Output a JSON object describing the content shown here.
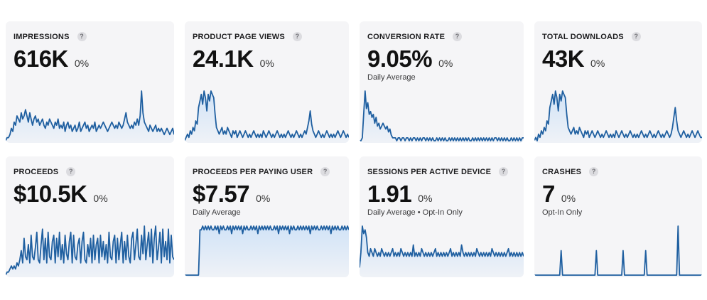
{
  "line_color": "#1f5fa0",
  "fill_color": "#cfe2f7",
  "help_icon": "question-mark-icon",
  "metrics": [
    {
      "title": "IMPRESSIONS",
      "value": "616K",
      "change": "0%",
      "subtitle": "",
      "series": [
        0,
        1,
        1,
        2,
        4,
        3,
        6,
        5,
        8,
        7,
        6,
        9,
        7,
        8,
        10,
        8,
        6,
        9,
        7,
        5,
        7,
        8,
        6,
        7,
        5,
        6,
        7,
        5,
        4,
        6,
        5,
        7,
        6,
        5,
        4,
        6,
        5,
        7,
        4,
        5,
        4,
        6,
        3,
        5,
        6,
        4,
        5,
        3,
        4,
        5,
        3,
        4,
        6,
        3,
        4,
        5,
        6,
        4,
        5,
        3,
        4,
        5,
        4,
        6,
        3,
        4,
        5,
        4,
        5,
        6,
        5,
        4,
        3,
        4,
        5,
        6,
        5,
        4,
        5,
        4,
        6,
        5,
        4,
        5,
        7,
        9,
        6,
        5,
        4,
        5,
        4,
        6,
        5,
        7,
        5,
        8,
        16,
        9,
        6,
        5,
        4,
        3,
        5,
        4,
        3,
        4,
        5,
        3,
        4,
        3,
        4,
        3,
        2,
        3,
        4,
        3,
        2,
        3,
        4,
        2
      ]
    },
    {
      "title": "PRODUCT PAGE VIEWS",
      "value": "24.1K",
      "change": "0%",
      "subtitle": "",
      "series": [
        0,
        1,
        2,
        1,
        3,
        2,
        4,
        3,
        6,
        5,
        10,
        12,
        14,
        11,
        15,
        13,
        9,
        14,
        12,
        15,
        14,
        13,
        8,
        4,
        3,
        2,
        3,
        4,
        2,
        3,
        2,
        4,
        3,
        2,
        1,
        3,
        2,
        3,
        1,
        2,
        3,
        2,
        1,
        2,
        3,
        2,
        1,
        2,
        1,
        2,
        3,
        2,
        1,
        2,
        1,
        2,
        1,
        3,
        2,
        1,
        2,
        3,
        2,
        1,
        2,
        1,
        2,
        3,
        2,
        1,
        2,
        1,
        2,
        1,
        2,
        3,
        2,
        1,
        2,
        1,
        2,
        3,
        2,
        1,
        2,
        1,
        2,
        3,
        2,
        4,
        6,
        9,
        5,
        3,
        2,
        1,
        2,
        3,
        2,
        1,
        2,
        1,
        2,
        3,
        2,
        1,
        2,
        1,
        2,
        1,
        2,
        3,
        2,
        1,
        2,
        3,
        2,
        1,
        2,
        1
      ]
    },
    {
      "title": "CONVERSION RATE",
      "value": "9.05%",
      "change": "0%",
      "subtitle": "Daily Average",
      "series": [
        0,
        0,
        1,
        9,
        17,
        11,
        13,
        9,
        10,
        8,
        9,
        6,
        8,
        5,
        6,
        4,
        5,
        6,
        5,
        4,
        5,
        3,
        4,
        2,
        1,
        1,
        1,
        0,
        1,
        1,
        0,
        1,
        1,
        0,
        1,
        1,
        0,
        1,
        0,
        1,
        1,
        0,
        1,
        0,
        1,
        0,
        1,
        1,
        0,
        1,
        0,
        1,
        0,
        1,
        0,
        0,
        1,
        0,
        1,
        0,
        1,
        0,
        1,
        0,
        0,
        1,
        0,
        1,
        0,
        1,
        0,
        1,
        0,
        1,
        0,
        1,
        0,
        1,
        0,
        1,
        0,
        0,
        1,
        0,
        1,
        0,
        1,
        0,
        1,
        0,
        1,
        0,
        1,
        0,
        1,
        0,
        1,
        0,
        1,
        1,
        0,
        1,
        0,
        1,
        0,
        1,
        0,
        1,
        0,
        0,
        1,
        0,
        1,
        0,
        1,
        0,
        1,
        0,
        1,
        1
      ]
    },
    {
      "title": "TOTAL DOWNLOADS",
      "value": "43K",
      "change": "0%",
      "subtitle": "",
      "series": [
        0,
        1,
        0,
        2,
        1,
        3,
        2,
        4,
        3,
        6,
        5,
        10,
        12,
        14,
        11,
        15,
        13,
        9,
        14,
        12,
        15,
        14,
        13,
        8,
        4,
        3,
        2,
        3,
        4,
        2,
        3,
        2,
        4,
        3,
        2,
        1,
        3,
        2,
        3,
        1,
        2,
        3,
        2,
        1,
        2,
        3,
        2,
        1,
        2,
        1,
        2,
        3,
        2,
        1,
        2,
        1,
        2,
        1,
        3,
        2,
        1,
        2,
        3,
        2,
        1,
        2,
        1,
        2,
        3,
        2,
        1,
        2,
        1,
        2,
        1,
        2,
        3,
        2,
        1,
        2,
        1,
        2,
        3,
        2,
        1,
        2,
        1,
        2,
        3,
        2,
        1,
        2,
        1,
        2,
        3,
        2,
        1,
        2,
        4,
        7,
        10,
        6,
        3,
        2,
        1,
        2,
        3,
        2,
        1,
        2,
        1,
        2,
        3,
        2,
        1,
        2,
        3,
        2,
        1,
        1
      ]
    },
    {
      "title": "PROCEEDS",
      "value": "$10.5K",
      "change": "0%",
      "subtitle": "",
      "series": [
        0,
        1,
        1,
        2,
        3,
        2,
        3,
        2,
        4,
        3,
        5,
        8,
        4,
        12,
        6,
        5,
        10,
        4,
        13,
        6,
        5,
        9,
        14,
        5,
        4,
        10,
        15,
        5,
        12,
        4,
        14,
        6,
        5,
        11,
        13,
        4,
        12,
        6,
        14,
        5,
        10,
        4,
        13,
        7,
        5,
        11,
        14,
        4,
        13,
        6,
        5,
        10,
        12,
        4,
        11,
        14,
        5,
        4,
        10,
        6,
        12,
        4,
        13,
        5,
        10,
        12,
        4,
        13,
        6,
        11,
        5,
        10,
        4,
        14,
        6,
        5,
        11,
        13,
        4,
        12,
        5,
        10,
        14,
        4,
        11,
        5,
        13,
        6,
        4,
        12,
        14,
        5,
        10,
        15,
        6,
        5,
        13,
        7,
        16,
        5,
        10,
        14,
        6,
        15,
        4,
        12,
        16,
        5,
        9,
        14,
        4,
        15,
        6,
        11,
        5,
        15,
        4,
        13,
        6,
        5
      ]
    },
    {
      "title": "PROCEEDS PER PAYING USER",
      "value": "$7.57",
      "change": "0%",
      "subtitle": "Daily Average",
      "series": [
        0,
        0,
        0,
        0,
        0,
        0,
        0,
        0,
        0,
        0,
        0,
        12,
        12,
        13,
        12,
        13,
        12,
        13,
        12,
        13,
        12,
        12,
        13,
        12,
        13,
        11,
        13,
        12,
        13,
        12,
        12,
        13,
        12,
        13,
        11,
        13,
        12,
        13,
        12,
        13,
        12,
        13,
        11,
        13,
        12,
        13,
        12,
        12,
        13,
        12,
        13,
        12,
        13,
        11,
        13,
        12,
        13,
        12,
        13,
        12,
        13,
        12,
        13,
        12,
        12,
        13,
        12,
        13,
        11,
        13,
        12,
        13,
        12,
        13,
        12,
        13,
        11,
        13,
        12,
        13,
        12,
        12,
        13,
        12,
        13,
        12,
        13,
        12,
        13,
        12,
        13,
        11,
        13,
        12,
        13,
        12,
        13,
        12,
        12,
        13,
        12,
        13,
        12,
        13,
        12,
        13,
        11,
        13,
        12,
        13,
        12,
        13,
        12,
        12,
        13,
        12,
        13,
        12,
        13,
        12
      ]
    },
    {
      "title": "SESSIONS PER ACTIVE DEVICE",
      "value": "1.91",
      "change": "0%",
      "subtitle": "Daily Average • Opt-In Only",
      "series": [
        2,
        6,
        13,
        11,
        12,
        10,
        6,
        5,
        7,
        6,
        5,
        7,
        6,
        5,
        6,
        5,
        7,
        6,
        5,
        6,
        5,
        6,
        5,
        6,
        7,
        5,
        6,
        5,
        6,
        5,
        7,
        6,
        5,
        6,
        5,
        6,
        5,
        6,
        5,
        8,
        5,
        6,
        5,
        6,
        5,
        7,
        6,
        5,
        6,
        5,
        6,
        5,
        6,
        5,
        6,
        7,
        5,
        6,
        5,
        6,
        5,
        6,
        5,
        6,
        5,
        6,
        7,
        5,
        6,
        5,
        6,
        5,
        6,
        5,
        8,
        6,
        5,
        6,
        5,
        6,
        5,
        6,
        5,
        6,
        5,
        7,
        6,
        5,
        6,
        5,
        6,
        5,
        6,
        5,
        6,
        5,
        7,
        6,
        5,
        6,
        5,
        6,
        5,
        6,
        5,
        6,
        5,
        6,
        7,
        5,
        6,
        5,
        6,
        5,
        6,
        5,
        6,
        5,
        6,
        5
      ]
    },
    {
      "title": "CRASHES",
      "value": "7",
      "change": "0%",
      "subtitle": "Opt-In Only",
      "series": [
        0,
        0,
        0,
        0,
        0,
        0,
        0,
        0,
        0,
        0,
        0,
        0,
        0,
        0,
        0,
        0,
        0,
        0,
        0,
        2,
        0,
        0,
        0,
        0,
        0,
        0,
        0,
        0,
        0,
        0,
        0,
        0,
        0,
        0,
        0,
        0,
        0,
        0,
        0,
        0,
        0,
        0,
        0,
        0,
        2,
        0,
        0,
        0,
        0,
        0,
        0,
        0,
        0,
        0,
        0,
        0,
        0,
        0,
        0,
        0,
        0,
        0,
        0,
        2,
        0,
        0,
        0,
        0,
        0,
        0,
        0,
        0,
        0,
        0,
        0,
        0,
        0,
        0,
        0,
        2,
        0,
        0,
        0,
        0,
        0,
        0,
        0,
        0,
        0,
        0,
        0,
        0,
        0,
        0,
        0,
        0,
        0,
        0,
        0,
        0,
        0,
        0,
        4,
        0,
        0,
        0,
        0,
        0,
        0,
        0,
        0,
        0,
        0,
        0,
        0,
        0,
        0,
        0,
        0,
        0
      ]
    }
  ]
}
